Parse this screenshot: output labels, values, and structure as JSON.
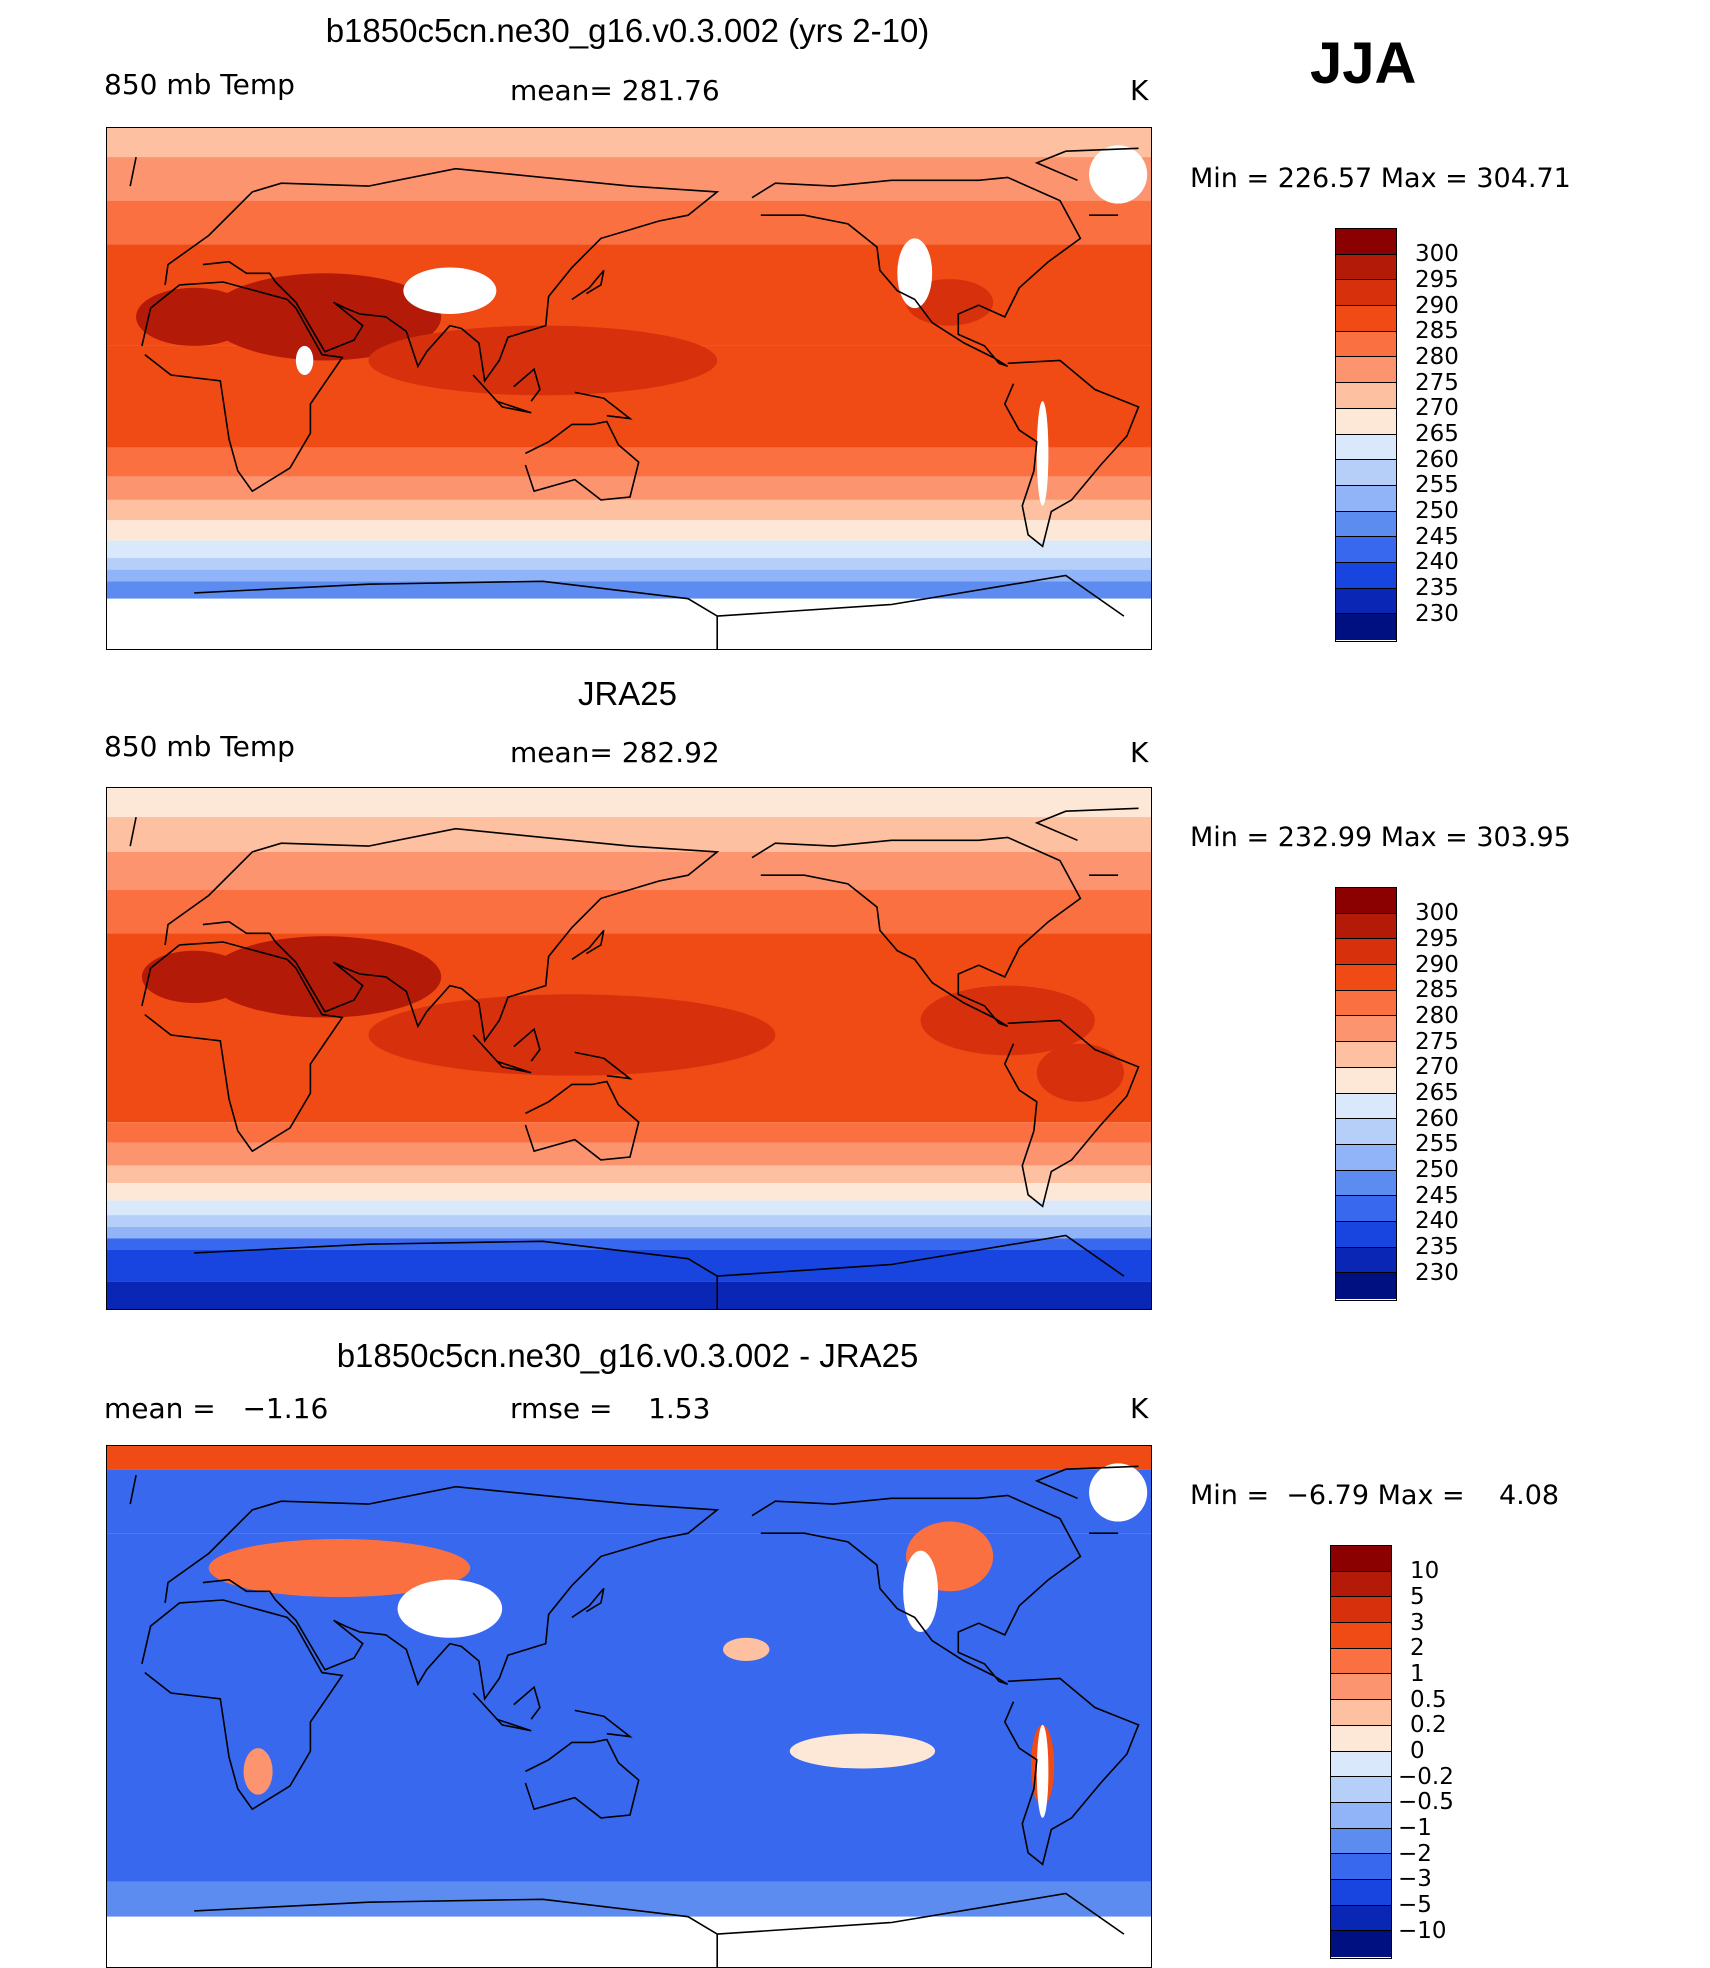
{
  "season": "JJA",
  "units": "K",
  "chart_data": [
    {
      "type": "heatmap",
      "title": "b1850c5cn.ne30_g16.v0.3.002 (yrs 2-10)",
      "variable": "850 mb Temp",
      "stat_text": "mean= 281.76",
      "units": "K",
      "minmax_text": "Min = 226.57 Max = 304.71",
      "min": 226.57,
      "max": 304.71,
      "mean": 281.76,
      "colorbar": {
        "labels": [
          "300",
          "295",
          "290",
          "285",
          "280",
          "275",
          "270",
          "265",
          "260",
          "255",
          "250",
          "245",
          "240",
          "235",
          "230"
        ],
        "colors": [
          "#8b0000",
          "#b41a08",
          "#d7300d",
          "#f04a15",
          "#fa7040",
          "#fc9470",
          "#fdc0a0",
          "#fde8d8",
          "#d9e8fb",
          "#b5cff9",
          "#90b4f7",
          "#5c8cf0",
          "#3868ee",
          "#1844e0",
          "#0a26b5",
          "#001080"
        ]
      },
      "fields": {
        "bands": [
          {
            "lat_min": 80,
            "lat_max": 90,
            "color": "#fdc0a0"
          },
          {
            "lat_min": 65,
            "lat_max": 80,
            "color": "#fc9470"
          },
          {
            "lat_min": 50,
            "lat_max": 65,
            "color": "#fa7040"
          },
          {
            "lat_min": 15,
            "lat_max": 50,
            "color": "#f04a15"
          },
          {
            "lat_min": -20,
            "lat_max": 15,
            "color": "#f04a15"
          },
          {
            "lat_min": -30,
            "lat_max": -20,
            "color": "#fa7040"
          },
          {
            "lat_min": -38,
            "lat_max": -30,
            "color": "#fc9470"
          },
          {
            "lat_min": -45,
            "lat_max": -38,
            "color": "#fdc0a0"
          },
          {
            "lat_min": -52,
            "lat_max": -45,
            "color": "#fde8d8"
          },
          {
            "lat_min": -58,
            "lat_max": -52,
            "color": "#d9e8fb"
          },
          {
            "lat_min": -62,
            "lat_max": -58,
            "color": "#b5cff9"
          },
          {
            "lat_min": -66,
            "lat_max": -62,
            "color": "#90b4f7"
          },
          {
            "lat_min": -72,
            "lat_max": -66,
            "color": "#5c8cf0"
          },
          {
            "lat_min": -90,
            "lat_max": -72,
            "color": "#ffffff"
          }
        ],
        "hotspots": [
          {
            "lon": 45,
            "lat": 25,
            "rx": 40,
            "ry": 15,
            "color": "#b41a08"
          },
          {
            "lon": 0,
            "lat": 25,
            "rx": 20,
            "ry": 10,
            "color": "#b41a08"
          },
          {
            "lon": -100,
            "lat": 30,
            "rx": 15,
            "ry": 8,
            "color": "#d7300d"
          },
          {
            "lon": 120,
            "lat": 10,
            "rx": 60,
            "ry": 12,
            "color": "#d7300d"
          }
        ],
        "masked": [
          {
            "lon": 88,
            "lat": 34,
            "rx": 16,
            "ry": 8
          },
          {
            "lon": -112,
            "lat": 40,
            "rx": 6,
            "ry": 12
          },
          {
            "lon": -68,
            "lat": -22,
            "rx": 2,
            "ry": 18
          },
          {
            "lon": -42,
            "lat": 74,
            "rx": 10,
            "ry": 10
          },
          {
            "lon": 38,
            "lat": 10,
            "rx": 3,
            "ry": 5
          }
        ]
      }
    },
    {
      "type": "heatmap",
      "title": "JRA25",
      "variable": "850 mb Temp",
      "stat_text": "mean= 282.92",
      "units": "K",
      "minmax_text": "Min = 232.99 Max = 303.95",
      "min": 232.99,
      "max": 303.95,
      "mean": 282.92,
      "colorbar": {
        "labels": [
          "300",
          "295",
          "290",
          "285",
          "280",
          "275",
          "270",
          "265",
          "260",
          "255",
          "250",
          "245",
          "240",
          "235",
          "230"
        ],
        "colors": [
          "#8b0000",
          "#b41a08",
          "#d7300d",
          "#f04a15",
          "#fa7040",
          "#fc9470",
          "#fdc0a0",
          "#fde8d8",
          "#d9e8fb",
          "#b5cff9",
          "#90b4f7",
          "#5c8cf0",
          "#3868ee",
          "#1844e0",
          "#0a26b5",
          "#001080"
        ]
      },
      "fields": {
        "bands": [
          {
            "lat_min": 80,
            "lat_max": 90,
            "color": "#fde8d8"
          },
          {
            "lat_min": 68,
            "lat_max": 80,
            "color": "#fdc0a0"
          },
          {
            "lat_min": 55,
            "lat_max": 68,
            "color": "#fc9470"
          },
          {
            "lat_min": 40,
            "lat_max": 55,
            "color": "#fa7040"
          },
          {
            "lat_min": -25,
            "lat_max": 40,
            "color": "#f04a15"
          },
          {
            "lat_min": -32,
            "lat_max": -25,
            "color": "#fa7040"
          },
          {
            "lat_min": -40,
            "lat_max": -32,
            "color": "#fc9470"
          },
          {
            "lat_min": -46,
            "lat_max": -40,
            "color": "#fdc0a0"
          },
          {
            "lat_min": -52,
            "lat_max": -46,
            "color": "#fde8d8"
          },
          {
            "lat_min": -57,
            "lat_max": -52,
            "color": "#d9e8fb"
          },
          {
            "lat_min": -61,
            "lat_max": -57,
            "color": "#b5cff9"
          },
          {
            "lat_min": -65,
            "lat_max": -61,
            "color": "#90b4f7"
          },
          {
            "lat_min": -69,
            "lat_max": -65,
            "color": "#3868ee"
          },
          {
            "lat_min": -80,
            "lat_max": -69,
            "color": "#1844e0"
          },
          {
            "lat_min": -90,
            "lat_max": -80,
            "color": "#0a26b5"
          }
        ],
        "hotspots": [
          {
            "lon": 45,
            "lat": 25,
            "rx": 40,
            "ry": 14,
            "color": "#b41a08"
          },
          {
            "lon": 0,
            "lat": 25,
            "rx": 18,
            "ry": 9,
            "color": "#b41a08"
          },
          {
            "lon": 130,
            "lat": 5,
            "rx": 70,
            "ry": 14,
            "color": "#d7300d"
          },
          {
            "lon": -80,
            "lat": 10,
            "rx": 30,
            "ry": 12,
            "color": "#d7300d"
          },
          {
            "lon": -55,
            "lat": -8,
            "rx": 15,
            "ry": 10,
            "color": "#d7300d"
          }
        ],
        "masked": []
      }
    },
    {
      "type": "heatmap",
      "title": "b1850c5cn.ne30_g16.v0.3.002 - JRA25",
      "variable": "mean =   −1.16",
      "stat_text": "rmse =    1.53",
      "units": "K",
      "minmax_text": "Min =  −6.79 Max =    4.08",
      "min": -6.79,
      "max": 4.08,
      "mean": -1.16,
      "rmse": 1.53,
      "colorbar": {
        "labels": [
          "10",
          "5",
          "3",
          "2",
          "1",
          "0.5",
          "0.2",
          "0",
          "−0.2",
          "−0.5",
          "−1",
          "−2",
          "−3",
          "−5",
          "−10"
        ],
        "colors": [
          "#8b0000",
          "#b41a08",
          "#d7300d",
          "#f04a15",
          "#fa7040",
          "#fc9470",
          "#fdc0a0",
          "#fde8d8",
          "#d9e8fb",
          "#b5cff9",
          "#90b4f7",
          "#5c8cf0",
          "#3868ee",
          "#1844e0",
          "#0a26b5",
          "#001080"
        ]
      },
      "fields": {
        "bands": [
          {
            "lat_min": 82,
            "lat_max": 90,
            "color": "#f04a15"
          },
          {
            "lat_min": 60,
            "lat_max": 82,
            "color": "#3868ee"
          },
          {
            "lat_min": -60,
            "lat_max": 60,
            "color": "#3868ee"
          },
          {
            "lat_min": -72,
            "lat_max": -60,
            "color": "#5c8cf0"
          },
          {
            "lat_min": -90,
            "lat_max": -72,
            "color": "#ffffff"
          }
        ],
        "hotspots": [
          {
            "lon": 50,
            "lat": 48,
            "rx": 45,
            "ry": 10,
            "color": "#fa7040"
          },
          {
            "lon": -100,
            "lat": 52,
            "rx": 15,
            "ry": 12,
            "color": "#fa7040"
          },
          {
            "lon": -130,
            "lat": -15,
            "rx": 25,
            "ry": 6,
            "color": "#fde8d8"
          },
          {
            "lon": -170,
            "lat": 20,
            "rx": 8,
            "ry": 4,
            "color": "#fdc0a0"
          },
          {
            "lon": 22,
            "lat": -22,
            "rx": 5,
            "ry": 8,
            "color": "#fc9470"
          },
          {
            "lon": -68,
            "lat": -20,
            "rx": 4,
            "ry": 14,
            "color": "#f04a15"
          }
        ],
        "masked": [
          {
            "lon": 88,
            "lat": 34,
            "rx": 18,
            "ry": 10
          },
          {
            "lon": -110,
            "lat": 40,
            "rx": 6,
            "ry": 14
          },
          {
            "lon": -42,
            "lat": 74,
            "rx": 10,
            "ry": 10
          },
          {
            "lon": -68,
            "lat": -22,
            "rx": 2,
            "ry": 16
          }
        ]
      }
    }
  ]
}
